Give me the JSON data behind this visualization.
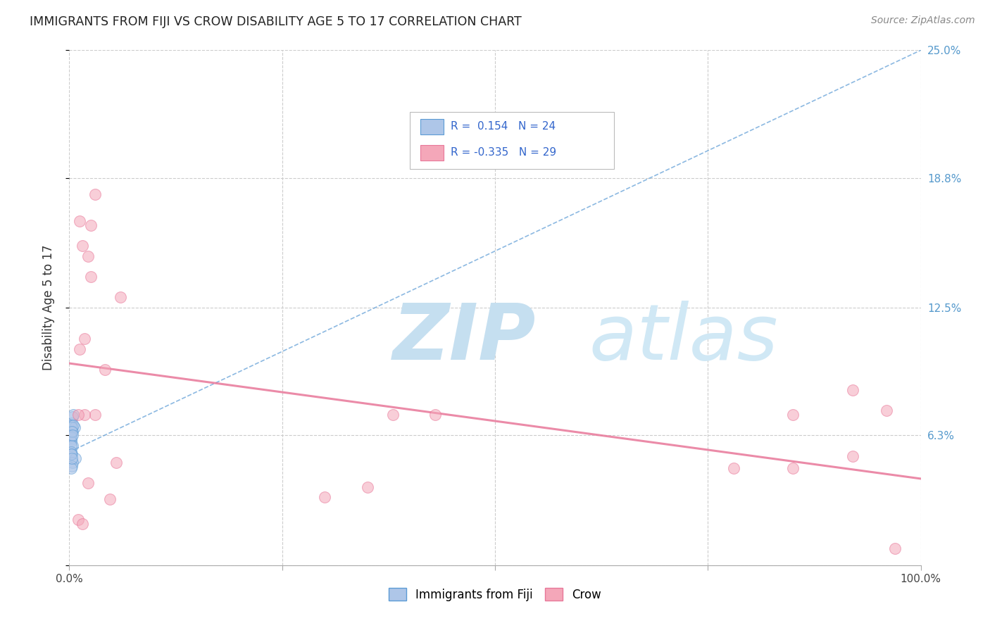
{
  "title": "IMMIGRANTS FROM FIJI VS CROW DISABILITY AGE 5 TO 17 CORRELATION CHART",
  "source": "Source: ZipAtlas.com",
  "ylabel": "Disability Age 5 to 17",
  "watermark_zip": "ZIP",
  "watermark_atlas": "atlas",
  "legend_fiji_R": 0.154,
  "legend_fiji_N": 24,
  "legend_crow_R": -0.335,
  "legend_crow_N": 29,
  "xlim": [
    0.0,
    1.0
  ],
  "ylim": [
    0.0,
    0.25
  ],
  "xticks": [
    0.0,
    0.25,
    0.5,
    0.75,
    1.0
  ],
  "xtick_labels": [
    "0.0%",
    "",
    "",
    "",
    "100.0%"
  ],
  "ytick_positions": [
    0.0,
    0.063,
    0.125,
    0.188,
    0.25
  ],
  "ytick_labels_right": [
    "",
    "6.3%",
    "12.5%",
    "18.8%",
    "25.0%"
  ],
  "fiji_points_x": [
    0.003,
    0.004,
    0.005,
    0.002,
    0.004,
    0.006,
    0.003,
    0.002,
    0.002,
    0.002,
    0.002,
    0.004,
    0.002,
    0.002,
    0.003,
    0.007,
    0.004,
    0.003,
    0.002,
    0.005,
    0.003,
    0.004,
    0.002,
    0.003
  ],
  "fiji_points_y": [
    0.069,
    0.072,
    0.073,
    0.068,
    0.065,
    0.067,
    0.067,
    0.061,
    0.063,
    0.062,
    0.06,
    0.058,
    0.058,
    0.055,
    0.054,
    0.052,
    0.05,
    0.048,
    0.047,
    0.068,
    0.065,
    0.063,
    0.054,
    0.052
  ],
  "crow_points_x": [
    0.018,
    0.022,
    0.015,
    0.025,
    0.06,
    0.012,
    0.042,
    0.03,
    0.018,
    0.01,
    0.055,
    0.38,
    0.43,
    0.96,
    0.85,
    0.92,
    0.78,
    0.3,
    0.35,
    0.025,
    0.012,
    0.03,
    0.048,
    0.01,
    0.015,
    0.022,
    0.85,
    0.92,
    0.97
  ],
  "crow_points_y": [
    0.11,
    0.15,
    0.155,
    0.14,
    0.13,
    0.105,
    0.095,
    0.073,
    0.073,
    0.073,
    0.05,
    0.073,
    0.073,
    0.075,
    0.073,
    0.085,
    0.047,
    0.033,
    0.038,
    0.165,
    0.167,
    0.18,
    0.032,
    0.022,
    0.02,
    0.04,
    0.047,
    0.053,
    0.008
  ],
  "fiji_trend_x": [
    0.0,
    1.0
  ],
  "fiji_trend_y": [
    0.055,
    0.25
  ],
  "crow_trend_x": [
    0.0,
    1.0
  ],
  "crow_trend_y": [
    0.098,
    0.042
  ],
  "grid_color": "#cccccc",
  "bg_color": "#ffffff",
  "fiji_dot_color": "#aec6e8",
  "fiji_dot_edge_color": "#5b9bd5",
  "crow_dot_color": "#f4a7b9",
  "crow_dot_edge_color": "#e87799",
  "fiji_trend_color": "#5b9bd5",
  "crow_trend_color": "#e87799",
  "dot_size": 130,
  "dot_alpha": 0.55,
  "title_color": "#222222",
  "source_color": "#888888",
  "ylabel_color": "#333333",
  "right_tick_color": "#5599cc",
  "legend_text_color": "#3366cc"
}
